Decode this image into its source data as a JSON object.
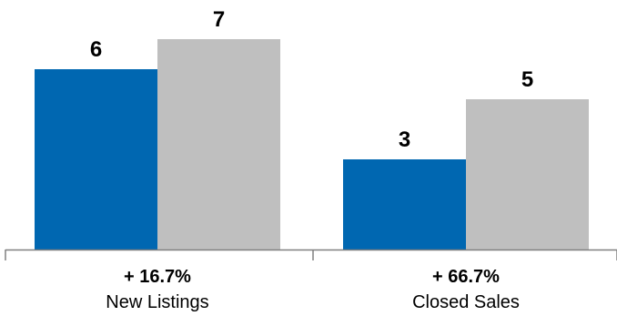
{
  "chart_data": {
    "type": "bar",
    "categories": [
      "New Listings",
      "Closed Sales"
    ],
    "changes": [
      "+ 16.7%",
      "+ 66.7%"
    ],
    "series": [
      {
        "values": [
          6,
          3
        ],
        "color": "#0067b1"
      },
      {
        "values": [
          7,
          5
        ],
        "color": "#bfbfbf"
      }
    ],
    "ylim": [
      0,
      8
    ],
    "grid": false,
    "legend": "none",
    "axis_color": "#808080"
  }
}
